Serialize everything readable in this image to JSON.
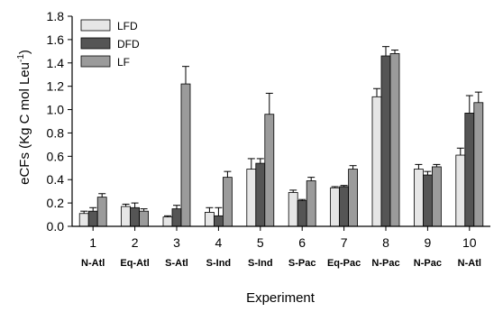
{
  "chart_data": {
    "type": "bar",
    "categories": [
      "1",
      "2",
      "3",
      "4",
      "5",
      "6",
      "7",
      "8",
      "9",
      "10"
    ],
    "sites": [
      "N-Atl",
      "Eq-Atl",
      "S-Atl",
      "S-Ind",
      "S-Ind",
      "S-Pac",
      "Eq-Pac",
      "N-Pac",
      "N-Pac",
      "N-Atl"
    ],
    "series": [
      {
        "name": "LFD",
        "color": "#e6e6e6",
        "values": [
          0.11,
          0.17,
          0.08,
          0.12,
          0.49,
          0.29,
          0.33,
          1.11,
          0.49,
          0.61
        ],
        "errors": [
          0.02,
          0.02,
          0.01,
          0.04,
          0.09,
          0.02,
          0.01,
          0.07,
          0.04,
          0.06
        ]
      },
      {
        "name": "DFD",
        "color": "#555555",
        "values": [
          0.13,
          0.16,
          0.15,
          0.09,
          0.54,
          0.22,
          0.34,
          1.46,
          0.44,
          0.97
        ],
        "errors": [
          0.03,
          0.04,
          0.03,
          0.07,
          0.04,
          0.01,
          0.01,
          0.08,
          0.03,
          0.15
        ]
      },
      {
        "name": "LF",
        "color": "#9b9b9b",
        "values": [
          0.25,
          0.13,
          1.22,
          0.42,
          0.96,
          0.39,
          0.49,
          1.48,
          0.51,
          1.06
        ],
        "errors": [
          0.03,
          0.02,
          0.15,
          0.05,
          0.18,
          0.03,
          0.03,
          0.03,
          0.02,
          0.09
        ]
      }
    ],
    "xlabel": "Experiment",
    "ylabel_main": "eCFs (Kg C mol Leu",
    "ylabel_exp": "-1",
    "ylabel_close": ")",
    "ylim": [
      0,
      1.8
    ],
    "yticks": [
      "0.0",
      "0.2",
      "0.4",
      "0.6",
      "0.8",
      "1.0",
      "1.2",
      "1.4",
      "1.6",
      "1.8"
    ],
    "legend_position": "top-left",
    "grid": false
  }
}
